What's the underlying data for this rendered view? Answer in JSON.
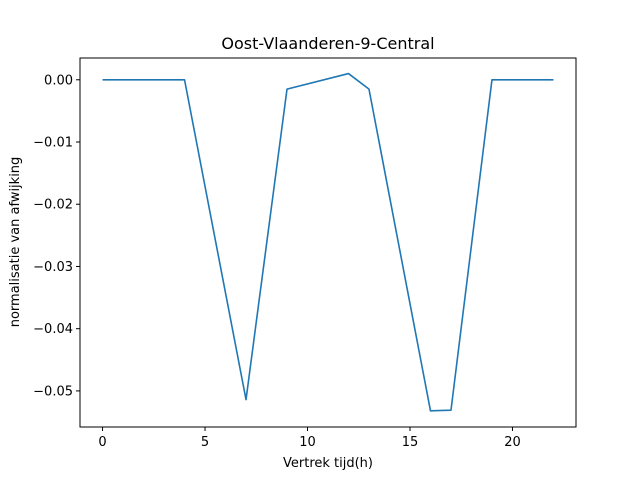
{
  "chart_data": {
    "type": "line",
    "title": "Oost-Vlaanderen-9-Central",
    "xlabel": "Vertrek tijd(h)",
    "ylabel": "normalisatie van afwijking",
    "xlim": [
      -1.1,
      23.1
    ],
    "ylim": [
      -0.0558,
      0.0035
    ],
    "xticks": [
      0,
      5,
      10,
      15,
      20
    ],
    "yticks": [
      0.0,
      -0.01,
      -0.02,
      -0.03,
      -0.04,
      -0.05
    ],
    "ytick_labels": [
      "0.00",
      "−0.01",
      "−0.02",
      "−0.03",
      "−0.04",
      "−0.05"
    ],
    "grid": false,
    "series": [
      {
        "color": "#1f77b4",
        "x": [
          0,
          1,
          2,
          3,
          4,
          7,
          9,
          12,
          13,
          16,
          17,
          19,
          20,
          21,
          22
        ],
        "y": [
          0.0,
          0.0,
          0.0,
          0.0,
          0.0,
          -0.0514,
          -0.0015,
          0.001,
          -0.0015,
          -0.0532,
          -0.0531,
          0.0,
          0.0,
          0.0,
          0.0
        ]
      }
    ]
  }
}
